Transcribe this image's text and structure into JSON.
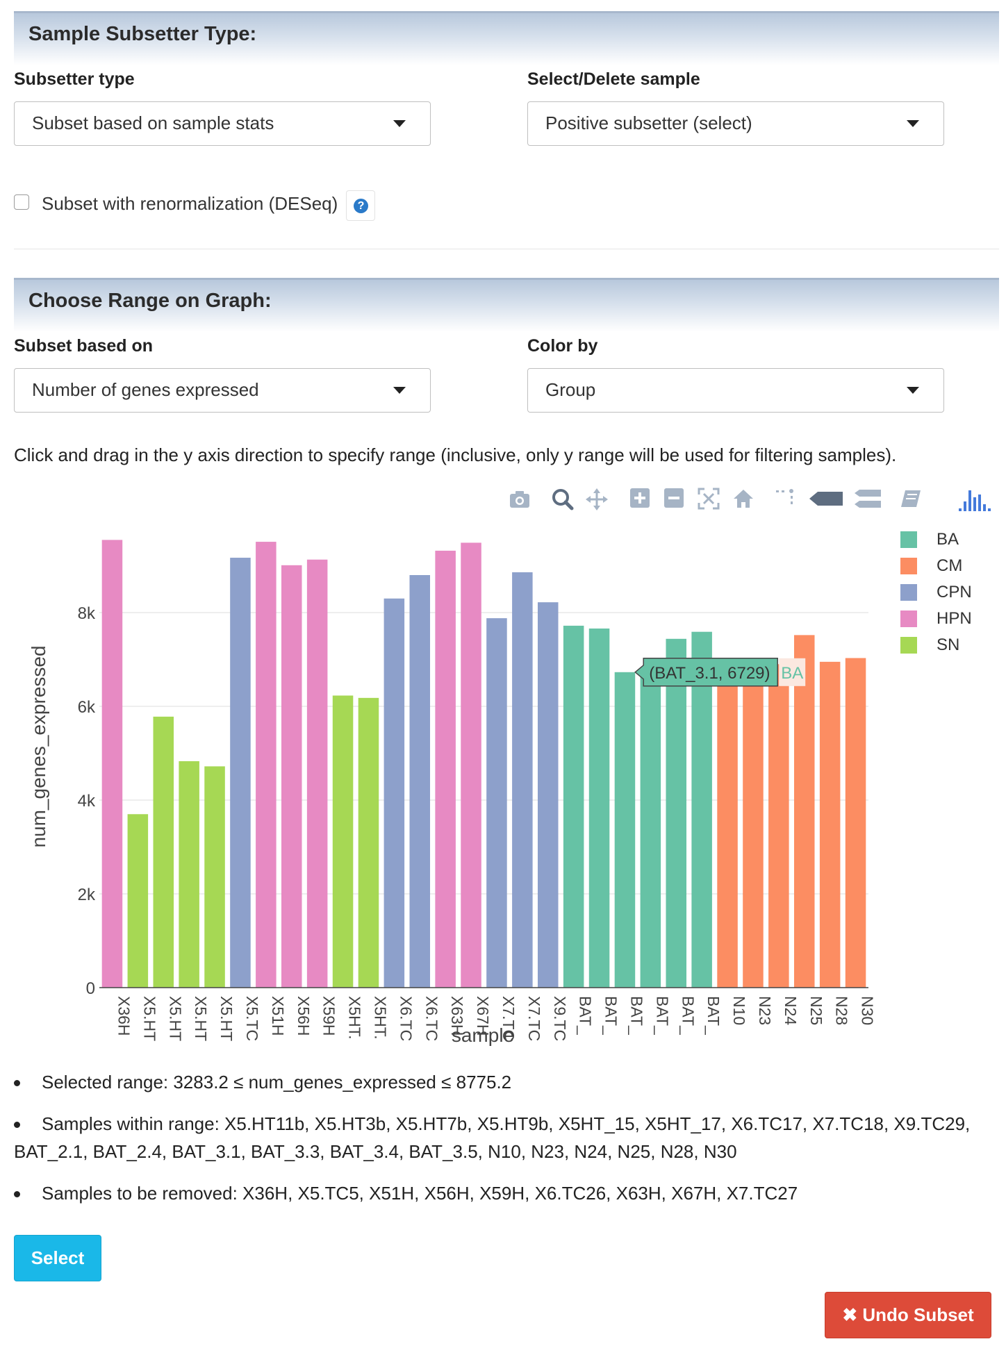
{
  "subsetter_section": {
    "title": "Sample Subsetter Type:",
    "type_label": "Subsetter type",
    "type_value": "Subset based on sample stats",
    "select_label": "Select/Delete sample",
    "select_value": "Positive subsetter (select)",
    "renorm_label": "Subset with renormalization (DESeq)",
    "renorm_checked": false,
    "help_glyph": "?"
  },
  "range_section": {
    "title": "Choose Range on Graph:",
    "subset_label": "Subset based on",
    "subset_value": "Number of genes expressed",
    "color_label": "Color by",
    "color_value": "Group",
    "instruction": "Click and drag in the y axis direction to specify range (inclusive, only y range will be used for filtering samples)."
  },
  "modebar_icons": [
    "camera-icon",
    "zoom-icon",
    "pan-icon",
    "zoom-in-icon",
    "zoom-out-icon",
    "autoscale-icon",
    "home-icon",
    "spike-lines-icon",
    "hover-closest-icon",
    "hover-compare-icon",
    "edit-icon",
    "plotly-logo-icon"
  ],
  "colors": {
    "BA": "#66c2a5",
    "CM": "#fc8d62",
    "CPN": "#8da0cb",
    "HPN": "#e78ac3",
    "SN": "#a6d854"
  },
  "chart_data": {
    "type": "bar",
    "xlabel": "sample",
    "ylabel": "num_genes_expressed",
    "ylim": [
      0,
      10000
    ],
    "yticks": [
      0,
      2000,
      4000,
      6000,
      8000
    ],
    "ytick_labels": [
      "0",
      "2k",
      "4k",
      "6k",
      "8k"
    ],
    "grid": true,
    "legend_placement": "top-right",
    "legend": [
      "BA",
      "CM",
      "CPN",
      "HPN",
      "SN"
    ],
    "bars": [
      {
        "label": "X36H",
        "group": "HPN",
        "value": 9550
      },
      {
        "label": "X5.HT",
        "group": "SN",
        "value": 3700
      },
      {
        "label": "X5.HT",
        "group": "SN",
        "value": 5780
      },
      {
        "label": "X5.HT",
        "group": "SN",
        "value": 4830
      },
      {
        "label": "X5.HT",
        "group": "SN",
        "value": 4720
      },
      {
        "label": "X5.TC",
        "group": "CPN",
        "value": 9170
      },
      {
        "label": "X51H",
        "group": "HPN",
        "value": 9510
      },
      {
        "label": "X56H",
        "group": "HPN",
        "value": 9010
      },
      {
        "label": "X59H",
        "group": "HPN",
        "value": 9130
      },
      {
        "label": "X5HT.",
        "group": "SN",
        "value": 6230
      },
      {
        "label": "X5HT.",
        "group": "SN",
        "value": 6180
      },
      {
        "label": "X6.TC",
        "group": "CPN",
        "value": 8300
      },
      {
        "label": "X6.TC",
        "group": "CPN",
        "value": 8800
      },
      {
        "label": "X63H",
        "group": "HPN",
        "value": 9320
      },
      {
        "label": "X67H",
        "group": "HPN",
        "value": 9490
      },
      {
        "label": "X7.TC",
        "group": "CPN",
        "value": 7880
      },
      {
        "label": "X7.TC",
        "group": "CPN",
        "value": 8860
      },
      {
        "label": "X9.TC",
        "group": "CPN",
        "value": 8220
      },
      {
        "label": "BAT_",
        "group": "BA",
        "value": 7720
      },
      {
        "label": "BAT_",
        "group": "BA",
        "value": 7660
      },
      {
        "label": "BAT_",
        "group": "BA",
        "value": 6729
      },
      {
        "label": "BAT_",
        "group": "BA",
        "value": 6800
      },
      {
        "label": "BAT_",
        "group": "BA",
        "value": 7440
      },
      {
        "label": "BAT_",
        "group": "BA",
        "value": 7590
      },
      {
        "label": "N10",
        "group": "CM",
        "value": 6980
      },
      {
        "label": "N23",
        "group": "CM",
        "value": 6780
      },
      {
        "label": "N24",
        "group": "CM",
        "value": 6900
      },
      {
        "label": "N25",
        "group": "CM",
        "value": 7520
      },
      {
        "label": "N28",
        "group": "CM",
        "value": 6950
      },
      {
        "label": "N30",
        "group": "CM",
        "value": 7030
      }
    ],
    "hover": {
      "text": "(BAT_3.1, 6729)",
      "group": "BA",
      "bar_index": 20
    }
  },
  "results": {
    "selected_range": "Selected range: 3283.2 ≤ num_genes_expressed ≤ 8775.2",
    "within_range": "Samples within range: X5.HT11b, X5.HT3b, X5.HT7b, X5.HT9b, X5HT_15, X5HT_17, X6.TC17, X7.TC18, X9.TC29, BAT_2.1, BAT_2.4, BAT_3.1, BAT_3.3, BAT_3.4, BAT_3.5, N10, N23, N24, N25, N28, N30",
    "to_remove": "Samples to be removed: X36H, X5.TC5, X51H, X56H, X59H, X6.TC26, X63H, X67H, X7.TC27"
  },
  "buttons": {
    "select": "Select",
    "undo": "✖ Undo Subset"
  }
}
